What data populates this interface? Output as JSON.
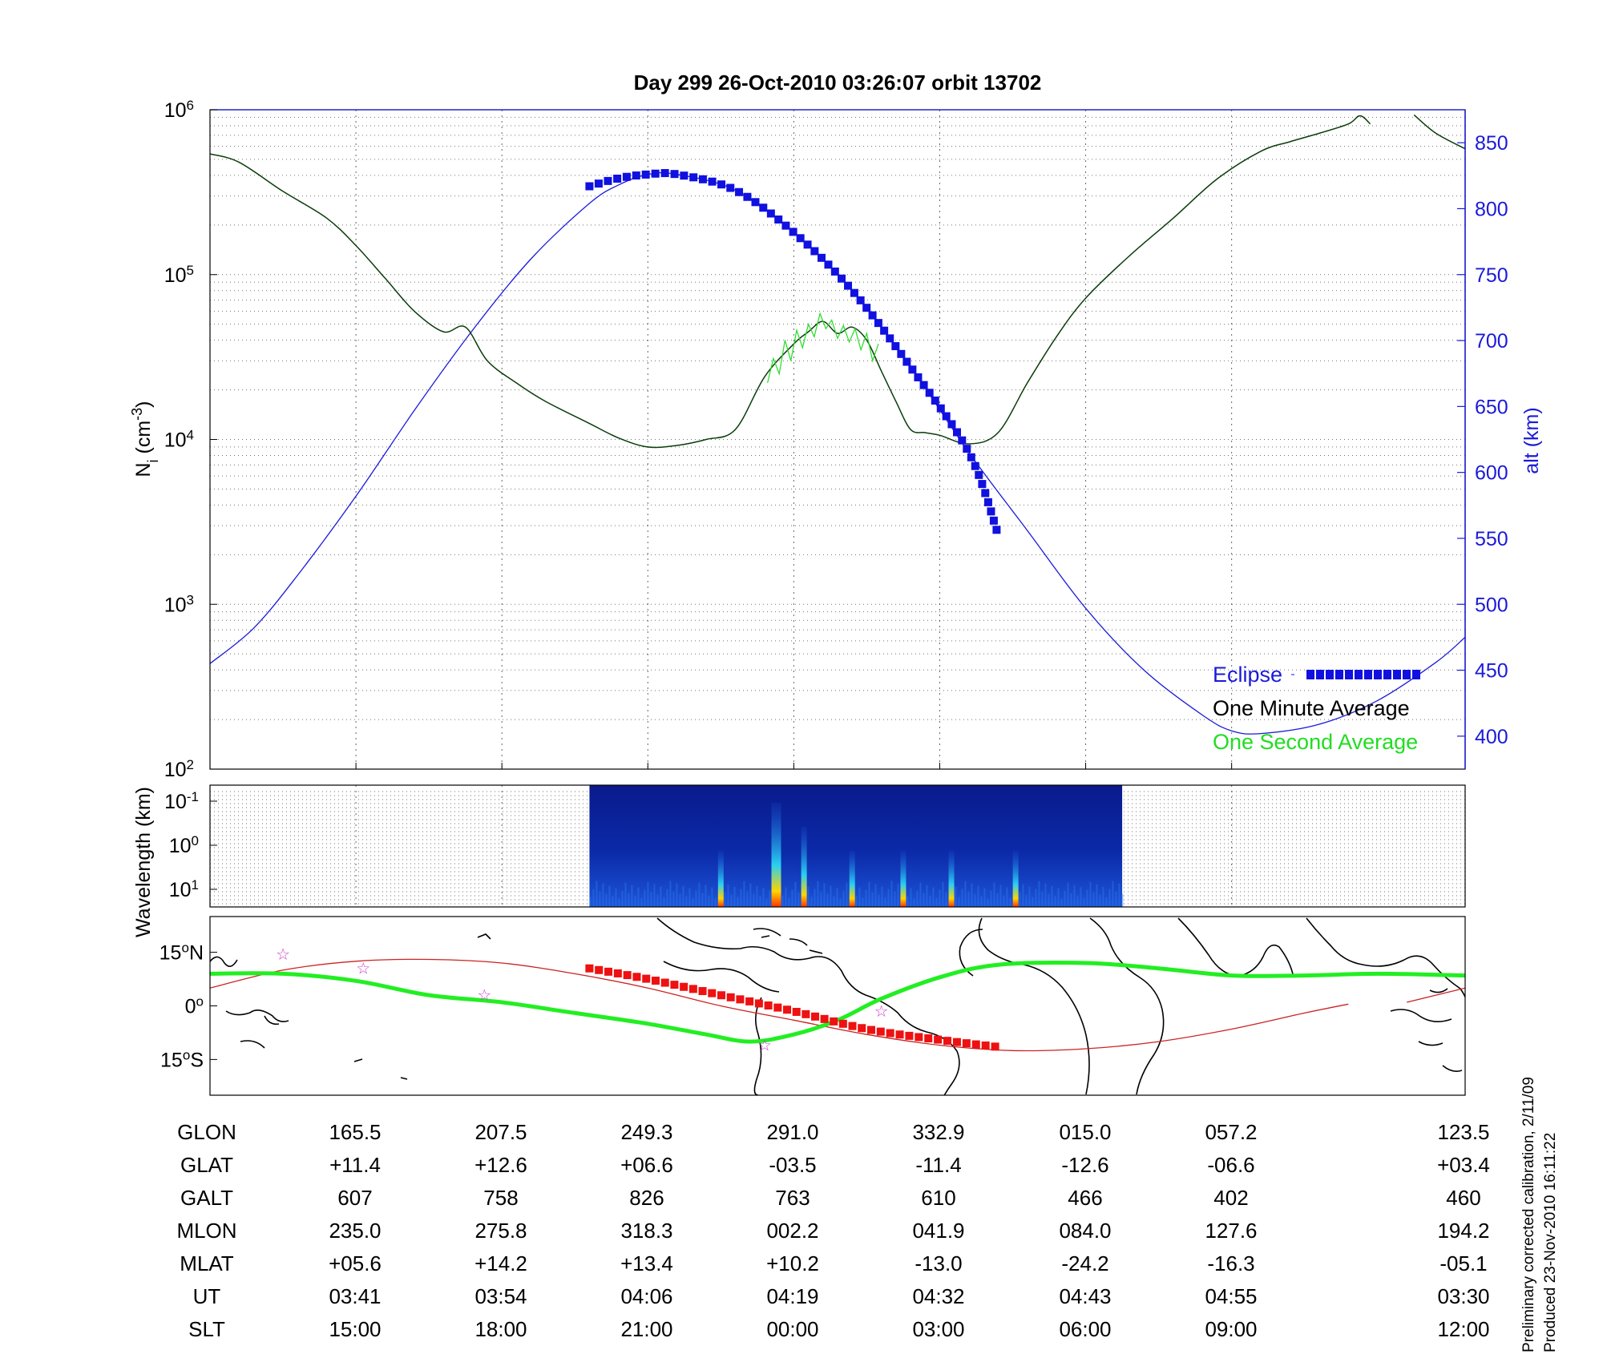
{
  "title": "Day 299  26-Oct-2010 03:26:07   orbit 13702",
  "colors": {
    "altitude": "#1a1ad9",
    "one_minute": "#0a3d0a",
    "one_second": "#22dd22",
    "eclipse": "#1010e0",
    "ground_track": "#cc2222",
    "ground_track_eclipse": "#ee1111",
    "magnetic_equator": "#22ee22",
    "stars": "#cc44cc"
  },
  "chart_data": [
    {
      "id": "ion-density",
      "type": "line",
      "ylabel": "N",
      "ylabel_sub": "i",
      "ylabel_unit": " (cm",
      "ylabel_exp": "-3",
      "ylabel_close": ")",
      "y_scale": "log",
      "ylim": [
        100,
        1000000
      ],
      "y_ticks": [
        {
          "base": "10",
          "exp": "2",
          "value": 100
        },
        {
          "base": "10",
          "exp": "3",
          "value": 1000
        },
        {
          "base": "10",
          "exp": "4",
          "value": 10000
        },
        {
          "base": "10",
          "exp": "5",
          "value": 100000
        },
        {
          "base": "10",
          "exp": "6",
          "value": 1000000
        }
      ],
      "y2label": "alt (km)",
      "y2lim": [
        375,
        875
      ],
      "y2_ticks": [
        400,
        450,
        500,
        550,
        600,
        650,
        700,
        750,
        800,
        850
      ],
      "x_domain": [
        0,
        8.6
      ],
      "x_grid": [
        1,
        2,
        3,
        4,
        5,
        6,
        7
      ],
      "grid": true,
      "legend_position": "bottom-right",
      "legend": [
        {
          "label": "Eclipse",
          "style": "eclipse"
        },
        {
          "label": "One Minute Average",
          "style": "one_minute"
        },
        {
          "label": "One Second Average",
          "style": "one_second"
        }
      ],
      "series": [
        {
          "key": "altitude",
          "axis": "right",
          "x": [
            0,
            0.3,
            0.6,
            1.0,
            1.4,
            1.8,
            2.2,
            2.6,
            2.8,
            3.0,
            3.2,
            3.6,
            4.0,
            4.4,
            4.8,
            5.2,
            5.6,
            6.0,
            6.4,
            6.8,
            7.0,
            7.2,
            7.6,
            8.0,
            8.4,
            8.6
          ],
          "y": [
            455,
            482,
            522,
            582,
            647,
            708,
            762,
            804,
            818,
            826,
            826,
            814,
            782,
            738,
            680,
            615,
            556,
            497,
            450,
            416,
            404,
            402,
            409,
            427,
            456,
            475
          ]
        },
        {
          "key": "one_minute",
          "axis": "left",
          "x": [
            0,
            0.2,
            0.5,
            0.8,
            1.0,
            1.2,
            1.4,
            1.6,
            1.75,
            1.9,
            2.1,
            2.3,
            2.6,
            2.8,
            3.0,
            3.2,
            3.4,
            3.6,
            3.8,
            4.0,
            4.1,
            4.2,
            4.3,
            4.4,
            4.5,
            4.6,
            4.7,
            4.8,
            4.9,
            5.0,
            5.2,
            5.4,
            5.6,
            5.8,
            6.0,
            6.3,
            6.6,
            6.9,
            7.2,
            7.4,
            7.6,
            7.8,
            7.88,
            7.95
          ],
          "y": [
            540000,
            480000,
            320000,
            220000,
            150000,
            95000,
            60000,
            45000,
            48000,
            30000,
            22000,
            17000,
            12500,
            10200,
            9000,
            9200,
            10000,
            11500,
            24000,
            38000,
            45000,
            52000,
            44000,
            48000,
            40000,
            26000,
            17000,
            11500,
            11000,
            10600,
            9400,
            11000,
            22000,
            42000,
            72000,
            130000,
            220000,
            380000,
            560000,
            640000,
            720000,
            820000,
            920000,
            820000
          ],
          "x_segment2": [
            8.25,
            8.4,
            8.6
          ],
          "y_segment2": [
            930000,
            720000,
            580000
          ]
        },
        {
          "key": "one_second",
          "axis": "left",
          "x": [
            3.82,
            3.86,
            3.9,
            3.94,
            3.98,
            4.02,
            4.06,
            4.1,
            4.14,
            4.18,
            4.22,
            4.26,
            4.3,
            4.34,
            4.38,
            4.42,
            4.46,
            4.5,
            4.54,
            4.58
          ],
          "y": [
            22000,
            31000,
            25000,
            40000,
            30000,
            46000,
            36000,
            50000,
            42000,
            58000,
            47000,
            53000,
            41000,
            49000,
            39000,
            47000,
            35000,
            44000,
            30000,
            38000
          ]
        },
        {
          "key": "eclipse",
          "axis": "right",
          "x": [
            2.6,
            2.8,
            3.0,
            3.2,
            3.6,
            4.0,
            4.4,
            4.8,
            5.2,
            5.4
          ],
          "y": [
            817,
            823,
            826,
            826,
            814,
            782,
            738,
            680,
            615,
            553
          ]
        }
      ]
    },
    {
      "id": "wavelength-spectrogram",
      "type": "heatmap",
      "ylabel": "Wavelength (km)",
      "y_ticks": [
        {
          "base": "10",
          "exp": "-1"
        },
        {
          "base": "10",
          "exp": "0"
        },
        {
          "base": "10",
          "exp": "1"
        }
      ],
      "x_range": [
        2.6,
        6.25
      ],
      "peak_x": [
        3.5,
        3.88,
        4.07,
        4.4,
        4.75,
        5.08,
        5.52
      ],
      "grid": true
    },
    {
      "id": "ground-track-map",
      "type": "line",
      "y_ticks": [
        {
          "value": 15,
          "label": "15",
          "suffix": "N"
        },
        {
          "value": 0,
          "label": "0",
          "suffix": ""
        },
        {
          "value": -15,
          "label": "15",
          "suffix": "S"
        }
      ],
      "ylim": [
        -25,
        25
      ],
      "series": [
        {
          "key": "ground_track",
          "x": [
            0,
            0.5,
            1.0,
            1.5,
            2.0,
            2.5,
            3.0,
            3.5,
            4.0,
            4.5,
            5.0,
            5.5,
            6.0,
            6.5,
            7.0,
            7.5,
            7.8
          ],
          "y": [
            5,
            10,
            12.5,
            13,
            12,
            9,
            5,
            0,
            -4,
            -8,
            -11,
            -12.5,
            -12,
            -10,
            -6.5,
            -2,
            0.5
          ],
          "x_segment2": [
            8.2,
            8.6
          ],
          "y_segment2": [
            1,
            5
          ]
        },
        {
          "key": "ground_track_eclipse",
          "x": [
            2.6,
            3.0,
            3.5,
            4.0,
            4.5,
            5.0,
            5.4
          ],
          "y": [
            10.5,
            7.5,
            3,
            -1.5,
            -6.5,
            -9.5,
            -11.5
          ]
        },
        {
          "key": "magnetic_equator",
          "x": [
            0,
            0.5,
            1.0,
            1.5,
            2.0,
            2.5,
            3.0,
            3.4,
            3.7,
            4.0,
            4.3,
            4.6,
            5.0,
            5.4,
            6.0,
            6.5,
            7.0,
            7.5,
            8.0,
            8.6
          ],
          "y": [
            9,
            9,
            7,
            3,
            1,
            -2,
            -5,
            -8,
            -10,
            -8,
            -4,
            2,
            8,
            11.5,
            12,
            10.5,
            8.5,
            8.5,
            9,
            8.5
          ]
        }
      ],
      "stars": {
        "x": [
          0.5,
          1.05,
          1.88,
          3.8,
          4.6
        ],
        "y": [
          14.5,
          10.5,
          3,
          -11,
          -1.5
        ]
      }
    }
  ],
  "table": {
    "row_labels": [
      "GLON",
      "GLAT",
      "GALT",
      "MLON",
      "MLAT",
      "UT",
      "SLT"
    ],
    "columns": [
      [
        "165.5",
        "+11.4",
        "607",
        "235.0",
        "+05.6",
        "03:41",
        "15:00"
      ],
      [
        "207.5",
        "+12.6",
        "758",
        "275.8",
        "+14.2",
        "03:54",
        "18:00"
      ],
      [
        "249.3",
        "+06.6",
        "826",
        "318.3",
        "+13.4",
        "04:06",
        "21:00"
      ],
      [
        "291.0",
        "-03.5",
        "763",
        "002.2",
        "+10.2",
        "04:19",
        "00:00"
      ],
      [
        "332.9",
        "-11.4",
        "610",
        "041.9",
        "-13.0",
        "04:32",
        "03:00"
      ],
      [
        "015.0",
        "-12.6",
        "466",
        "084.0",
        "-24.2",
        "04:43",
        "06:00"
      ],
      [
        "057.2",
        "-06.6",
        "402",
        "127.6",
        "-16.3",
        "04:55",
        "09:00"
      ],
      [
        "123.5",
        "+03.4",
        "460",
        "194.2",
        "-05.1",
        "03:30",
        "12:00"
      ]
    ]
  },
  "footer": {
    "line1": "Preliminary corrected calibration, 2/11/09",
    "line2": "Produced 23-Nov-2010 16:11:22"
  }
}
